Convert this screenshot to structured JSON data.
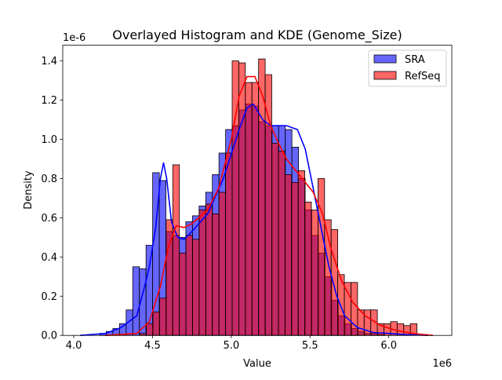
{
  "chart_data": {
    "type": "bar",
    "title": "Overlayed Histogram and KDE (Genome_Size)",
    "xlabel": "Value",
    "ylabel": "Density",
    "x_offset_label": "1e6",
    "y_offset_label": "1e-6",
    "xlim": [
      3.93,
      6.4
    ],
    "ylim": [
      0,
      1.48
    ],
    "x_ticks": [
      4.0,
      4.5,
      5.0,
      5.5,
      6.0
    ],
    "x_tick_labels": [
      "4.0",
      "4.5",
      "5.0",
      "5.5",
      "6.0"
    ],
    "y_ticks": [
      0.0,
      0.2,
      0.4,
      0.6,
      0.8,
      1.0,
      1.2,
      1.4
    ],
    "y_tick_labels": [
      "0.0",
      "0.2",
      "0.4",
      "0.6",
      "0.8",
      "1.0",
      "1.2",
      "1.4"
    ],
    "grid": false,
    "legend_position": "top-right",
    "series": [
      {
        "name": "SRA",
        "color": "#0000ff",
        "bin_start": 4.164,
        "bin_width": 0.0421,
        "values": [
          0.01,
          0.02,
          0.035,
          0.06,
          0.13,
          0.35,
          0.34,
          0.46,
          0.83,
          0.79,
          0.53,
          0.51,
          0.5,
          0.58,
          0.61,
          0.66,
          0.73,
          0.82,
          0.93,
          1.05,
          1.07,
          1.15,
          1.18,
          1.17,
          1.09,
          1.07,
          1.07,
          1.07,
          1.05,
          0.96,
          0.8,
          0.64,
          0.51,
          0.42,
          0.3,
          0.18,
          0.1,
          0.06,
          0.035,
          0.02,
          0.01,
          0.01,
          0.005
        ],
        "kde": [
          [
            4.04,
            0
          ],
          [
            4.2,
            0.01
          ],
          [
            4.3,
            0.04
          ],
          [
            4.4,
            0.1
          ],
          [
            4.45,
            0.25
          ],
          [
            4.48,
            0.35
          ],
          [
            4.52,
            0.55
          ],
          [
            4.55,
            0.8
          ],
          [
            4.57,
            0.88
          ],
          [
            4.59,
            0.8
          ],
          [
            4.62,
            0.58
          ],
          [
            4.66,
            0.5
          ],
          [
            4.7,
            0.49
          ],
          [
            4.75,
            0.53
          ],
          [
            4.85,
            0.62
          ],
          [
            4.95,
            0.8
          ],
          [
            5.05,
            1.05
          ],
          [
            5.1,
            1.16
          ],
          [
            5.14,
            1.18
          ],
          [
            5.2,
            1.1
          ],
          [
            5.25,
            1.07
          ],
          [
            5.35,
            1.07
          ],
          [
            5.42,
            1.05
          ],
          [
            5.47,
            0.95
          ],
          [
            5.52,
            0.75
          ],
          [
            5.57,
            0.55
          ],
          [
            5.62,
            0.35
          ],
          [
            5.67,
            0.2
          ],
          [
            5.72,
            0.1
          ],
          [
            5.8,
            0.04
          ],
          [
            5.9,
            0.015
          ],
          [
            6.0,
            0.01
          ],
          [
            6.1,
            0.005
          ],
          [
            6.25,
            0
          ]
        ]
      },
      {
        "name": "RefSeq",
        "color": "#ff0000",
        "bin_start": 4.419,
        "bin_width": 0.0419,
        "values": [
          0.01,
          0.06,
          0.12,
          0.19,
          0.59,
          0.87,
          0.42,
          0.51,
          0.49,
          0.64,
          0.67,
          0.62,
          0.73,
          0.93,
          1.4,
          1.39,
          1.29,
          1.29,
          1.41,
          1.33,
          0.98,
          0.94,
          0.82,
          0.78,
          0.84,
          0.68,
          0.64,
          0.8,
          0.59,
          0.54,
          0.31,
          0.27,
          0.27,
          0.13,
          0.13,
          0.13,
          0.06,
          0.06,
          0.07,
          0.06,
          0.05,
          0.06
        ],
        "kde": [
          [
            4.2,
            0
          ],
          [
            4.4,
            0.01
          ],
          [
            4.48,
            0.07
          ],
          [
            4.55,
            0.25
          ],
          [
            4.6,
            0.45
          ],
          [
            4.65,
            0.56
          ],
          [
            4.7,
            0.55
          ],
          [
            4.75,
            0.57
          ],
          [
            4.85,
            0.64
          ],
          [
            4.92,
            0.75
          ],
          [
            5.0,
            1.0
          ],
          [
            5.05,
            1.22
          ],
          [
            5.1,
            1.32
          ],
          [
            5.15,
            1.32
          ],
          [
            5.2,
            1.22
          ],
          [
            5.25,
            1.07
          ],
          [
            5.3,
            0.98
          ],
          [
            5.35,
            0.9
          ],
          [
            5.45,
            0.8
          ],
          [
            5.52,
            0.73
          ],
          [
            5.58,
            0.62
          ],
          [
            5.63,
            0.45
          ],
          [
            5.7,
            0.28
          ],
          [
            5.77,
            0.17
          ],
          [
            5.85,
            0.1
          ],
          [
            5.95,
            0.05
          ],
          [
            6.05,
            0.025
          ],
          [
            6.15,
            0.01
          ],
          [
            6.28,
            0
          ]
        ]
      }
    ]
  }
}
